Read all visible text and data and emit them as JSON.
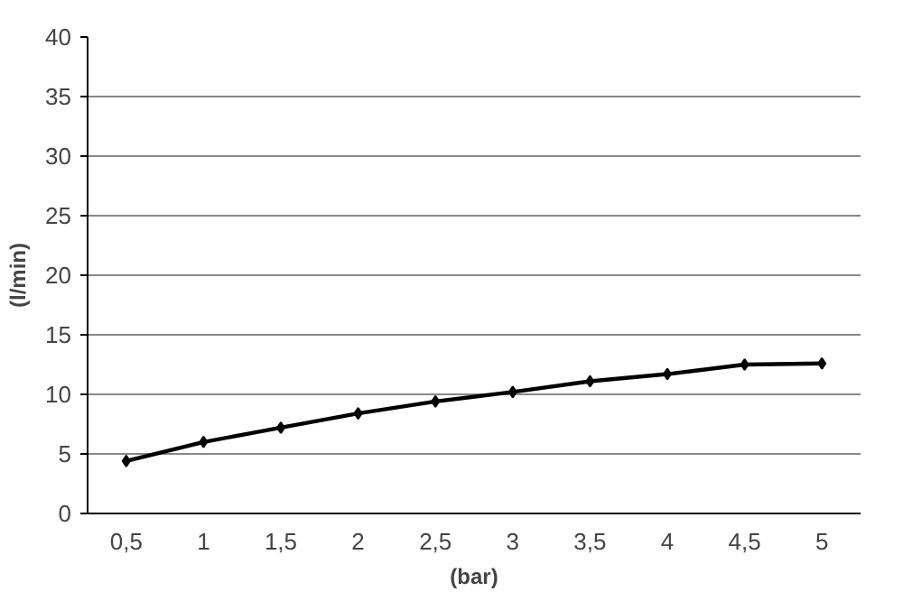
{
  "chart_data": {
    "type": "line",
    "xlabel": "(bar)",
    "ylabel": "(l/min)",
    "categories": [
      "0,5",
      "1",
      "1,5",
      "2",
      "2,5",
      "3",
      "3,5",
      "4",
      "4,5",
      "5"
    ],
    "series": [
      {
        "color": "#000000",
        "values": [
          4.4,
          6.0,
          7.2,
          8.4,
          9.4,
          10.2,
          11.1,
          11.7,
          12.5,
          12.6
        ]
      }
    ],
    "ylim": [
      0,
      40
    ],
    "yticks": [
      0,
      5,
      10,
      15,
      20,
      25,
      30,
      35,
      40
    ],
    "grid": "y",
    "marker": "diamond",
    "line_style": "solid"
  }
}
